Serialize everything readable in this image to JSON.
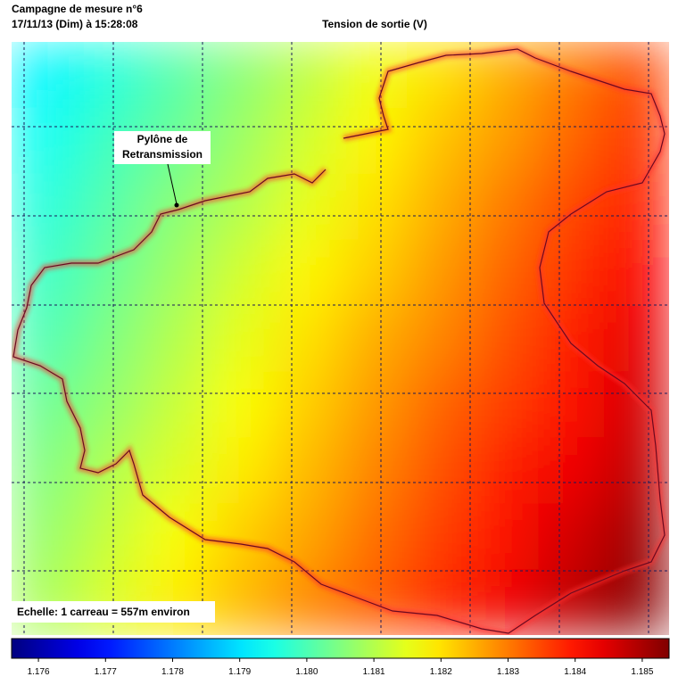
{
  "chart_data": {
    "type": "heatmap",
    "title": "Campagne de mesure n°6",
    "subtitle": "17/11/13 (Dim) à 15:28:08",
    "colorbar_label": "Tension de sortie (V)",
    "annotations": [
      [
        "Pylône de",
        "Retransmission"
      ],
      "Echelle: 1 carreau = 557m environ"
    ],
    "colormap": "jet",
    "clim": [
      1.1756,
      1.1854
    ],
    "cticks": [
      1.176,
      1.177,
      1.178,
      1.179,
      {
        "value": 1.18,
        "label": "1.180"
      },
      1.181,
      1.182,
      1.183,
      1.184,
      1.185
    ],
    "z": [
      [
        1.1792,
        1.1796,
        1.1801,
        1.1806,
        1.1811,
        1.1816,
        1.182,
        1.1825,
        1.183,
        1.1835
      ],
      [
        1.1794,
        1.1799,
        1.1803,
        1.1808,
        1.1813,
        1.1818,
        1.1823,
        1.1827,
        1.1832,
        1.1837
      ],
      [
        1.1796,
        1.1801,
        1.1806,
        1.181,
        1.1815,
        1.182,
        1.1825,
        1.183,
        1.1835,
        1.1839
      ],
      [
        1.1798,
        1.1803,
        1.1808,
        1.1813,
        1.1818,
        1.1822,
        1.1827,
        1.1832,
        1.1837,
        1.1842
      ],
      [
        1.18,
        1.1805,
        1.181,
        1.1815,
        1.182,
        1.1825,
        1.1829,
        1.1834,
        1.1839,
        1.1844
      ],
      [
        1.1803,
        1.1807,
        1.1812,
        1.1817,
        1.1822,
        1.1827,
        1.1832,
        1.1836,
        1.1841,
        1.1846
      ],
      [
        1.1805,
        1.181,
        1.1814,
        1.1819,
        1.1824,
        1.1829,
        1.1834,
        1.1839,
        1.1843,
        1.1848
      ],
      [
        1.1807,
        1.1812,
        1.1817,
        1.1822,
        1.1826,
        1.1831,
        1.1836,
        1.1841,
        1.1846,
        1.1851
      ],
      [
        1.1809,
        1.1814,
        1.1819,
        1.1824,
        1.1829,
        1.1833,
        1.1838,
        1.1843,
        1.1848,
        1.1853
      ]
    ]
  }
}
